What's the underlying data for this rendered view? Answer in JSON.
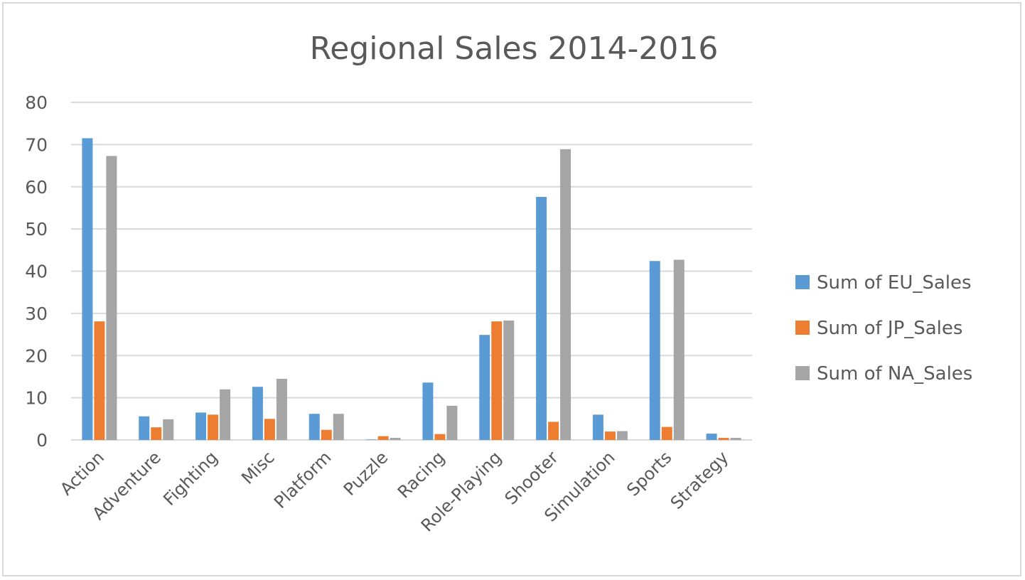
{
  "chart_data": {
    "type": "bar",
    "title": "Regional Sales 2014-2016",
    "xlabel": "",
    "ylabel": "",
    "ylim": [
      0,
      80
    ],
    "yticks": [
      0,
      10,
      20,
      30,
      40,
      50,
      60,
      70,
      80
    ],
    "grid": true,
    "legend_position": "right",
    "categories": [
      "Action",
      "Adventure",
      "Fighting",
      "Misc",
      "Platform",
      "Puzzle",
      "Racing",
      "Role-Playing",
      "Shooter",
      "Simulation",
      "Sports",
      "Strategy"
    ],
    "series": [
      {
        "name": "Sum of EU_Sales",
        "color": "#5b9bd5",
        "values": [
          71.5,
          5.6,
          6.5,
          12.6,
          6.2,
          0.1,
          13.6,
          24.9,
          57.6,
          6.0,
          42.4,
          1.5
        ]
      },
      {
        "name": "Sum of JP_Sales",
        "color": "#ed7d31",
        "values": [
          28.1,
          3.0,
          6.0,
          5.0,
          2.4,
          0.9,
          1.4,
          28.1,
          4.3,
          2.0,
          3.1,
          0.5
        ]
      },
      {
        "name": "Sum of NA_Sales",
        "color": "#a5a5a5",
        "values": [
          67.3,
          4.9,
          12.0,
          14.5,
          6.2,
          0.5,
          8.1,
          28.3,
          68.9,
          2.1,
          42.7,
          0.5
        ]
      }
    ]
  }
}
